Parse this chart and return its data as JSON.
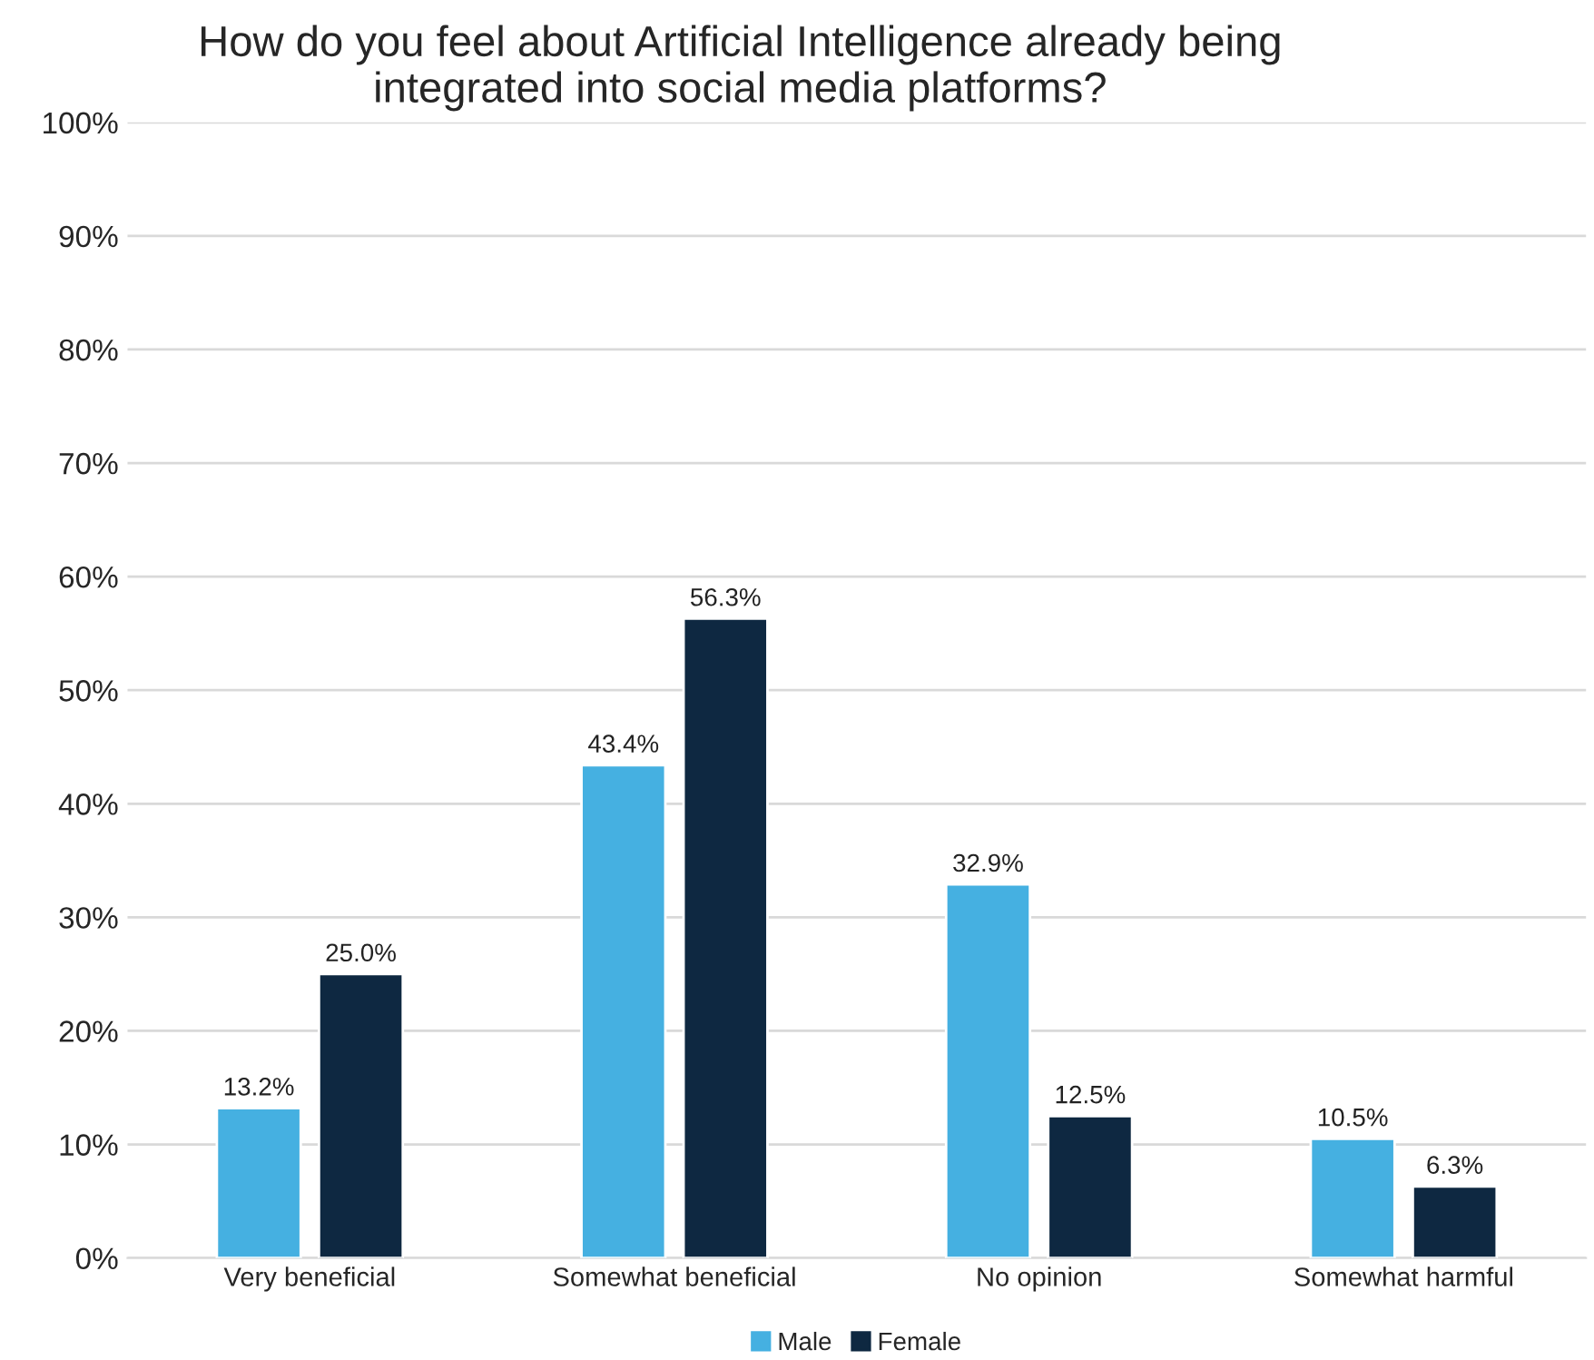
{
  "chart_data": {
    "type": "bar",
    "title": "How do you feel about Artificial Intelligence already being\nintegrated into social media platforms?",
    "categories": [
      "Very beneficial",
      "Somewhat beneficial",
      "No opinion",
      "Somewhat harmful"
    ],
    "series": [
      {
        "name": "Male",
        "color": "#45b0e1",
        "values": [
          13.2,
          43.4,
          32.9,
          10.5
        ],
        "value_labels": [
          "13.2%",
          "43.4%",
          "32.9%",
          "10.5%"
        ]
      },
      {
        "name": "Female",
        "color": "#0e2841",
        "values": [
          25.0,
          56.3,
          12.5,
          6.3
        ],
        "value_labels": [
          "25.0%",
          "56.3%",
          "12.5%",
          "6.3%"
        ]
      }
    ],
    "ylim": [
      0,
      100
    ],
    "yticks": [
      {
        "value": 0,
        "label": "0%"
      },
      {
        "value": 10,
        "label": "10%"
      },
      {
        "value": 20,
        "label": "20%"
      },
      {
        "value": 30,
        "label": "30%"
      },
      {
        "value": 40,
        "label": "40%"
      },
      {
        "value": 50,
        "label": "50%"
      },
      {
        "value": 60,
        "label": "60%"
      },
      {
        "value": 70,
        "label": "70%"
      },
      {
        "value": 80,
        "label": "80%"
      },
      {
        "value": 90,
        "label": "90%"
      },
      {
        "value": 100,
        "label": "100%"
      }
    ],
    "grid": "y",
    "legend": "bottom"
  }
}
